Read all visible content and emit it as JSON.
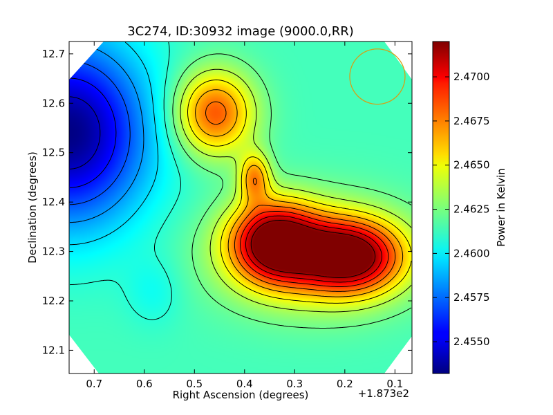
{
  "chart_data": {
    "type": "heatmap",
    "title": "3C274, ID:30932 image (9000.0,RR)",
    "xlabel": "Right Ascension (degrees)",
    "ylabel": "Declination (degrees)",
    "x_offset_label": "+1.873e2",
    "xlim": [
      0.75,
      0.066
    ],
    "ylim": [
      12.053,
      12.725
    ],
    "x_ticks": [
      0.7,
      0.6,
      0.5,
      0.4,
      0.3,
      0.2,
      0.1
    ],
    "x_tick_labels": [
      "0.7",
      "0.6",
      "0.5",
      "0.4",
      "0.3",
      "0.2",
      "0.1"
    ],
    "y_ticks": [
      12.1,
      12.2,
      12.3,
      12.4,
      12.5,
      12.6,
      12.7
    ],
    "y_tick_labels": [
      "12.1",
      "12.2",
      "12.3",
      "12.4",
      "12.5",
      "12.6",
      "12.7"
    ],
    "colorbar": {
      "label": "Power in Kelvin",
      "range": [
        2.4532,
        2.472
      ],
      "ticks": [
        2.455,
        2.4575,
        2.46,
        2.4625,
        2.465,
        2.4675,
        2.47
      ],
      "tick_labels": [
        "2.4550",
        "2.4575",
        "2.4600",
        "2.4625",
        "2.4650",
        "2.4675",
        "2.4700"
      ],
      "colormap": "jet"
    },
    "background_value": 2.4615,
    "features": [
      {
        "kind": "minimum",
        "ra": 0.75,
        "dec": 12.54,
        "value": 2.4533
      },
      {
        "kind": "maximum",
        "ra": 0.46,
        "dec": 12.58,
        "value": 2.4682
      },
      {
        "kind": "maximum",
        "ra": 0.38,
        "dec": 12.45,
        "value": 2.4665
      },
      {
        "kind": "maximum",
        "ra": 0.34,
        "dec": 12.32,
        "value": 2.4712
      },
      {
        "kind": "maximum",
        "ra": 0.19,
        "dec": 12.29,
        "value": 2.4705
      },
      {
        "kind": "minimum",
        "ra": 0.58,
        "dec": 12.22,
        "value": 2.4605
      }
    ],
    "beam_marker": {
      "ra": 0.135,
      "dec": 12.654,
      "color": "#d4a017"
    }
  },
  "colors": {
    "axes": "#000000",
    "contour": "#000000",
    "background": "#ffffff"
  }
}
